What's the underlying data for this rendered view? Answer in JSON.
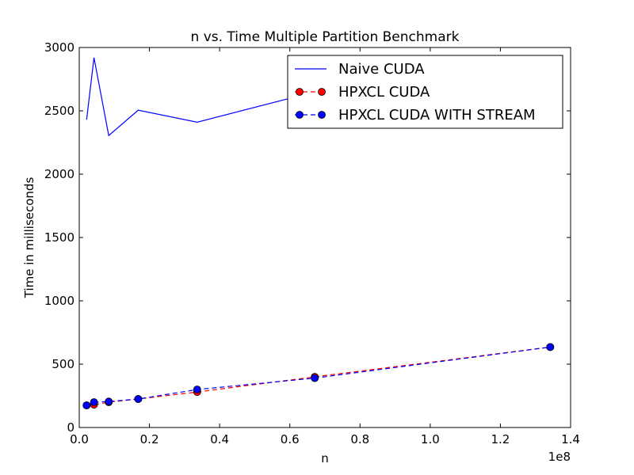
{
  "chart_data": {
    "type": "line",
    "title": "n vs. Time Multiple Partition Benchmark",
    "xlabel": "n",
    "ylabel": "Time in milliseconds",
    "x_offset_label": "1e8",
    "xlim": [
      0,
      1.4
    ],
    "ylim": [
      0,
      3000
    ],
    "xticks": [
      "0.0",
      "0.2",
      "0.4",
      "0.6",
      "0.8",
      "1.0",
      "1.2",
      "1.4"
    ],
    "yticks": [
      "0",
      "500",
      "1000",
      "1500",
      "2000",
      "2500",
      "3000"
    ],
    "grid": false,
    "legend_position": "top-right",
    "series": [
      {
        "name": "Naive CUDA",
        "color": "#0000ff",
        "style": "solid",
        "marker": "none",
        "x": [
          0.021,
          0.042,
          0.084,
          0.168,
          0.336,
          0.671,
          1.342
        ],
        "y": [
          2430,
          2920,
          2305,
          2505,
          2410,
          2650,
          2800
        ]
      },
      {
        "name": "HPXCL CUDA",
        "color": "#ff0000",
        "style": "dashed",
        "marker": "circle",
        "x": [
          0.021,
          0.042,
          0.084,
          0.168,
          0.336,
          0.671,
          1.342
        ],
        "y": [
          175,
          180,
          200,
          225,
          280,
          400,
          635
        ]
      },
      {
        "name": "HPXCL CUDA WITH STREAM",
        "color": "#0000ff",
        "style": "dashed",
        "marker": "circle",
        "x": [
          0.021,
          0.042,
          0.084,
          0.168,
          0.336,
          0.671,
          1.342
        ],
        "y": [
          175,
          200,
          205,
          225,
          300,
          390,
          635
        ]
      }
    ]
  }
}
